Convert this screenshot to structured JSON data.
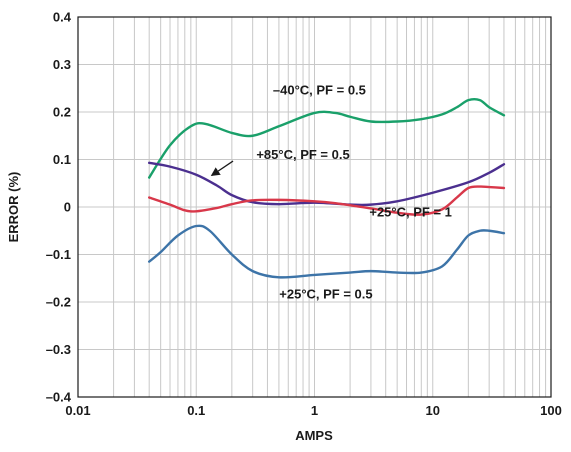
{
  "chart_data": {
    "type": "line",
    "xlabel": "AMPS",
    "ylabel": "ERROR (%)",
    "xscale": "log",
    "xlim": [
      0.01,
      100
    ],
    "ylim": [
      -0.4,
      0.4
    ],
    "grid": true,
    "x_ticks": [
      "0.01",
      "0.1",
      "1",
      "10",
      "100"
    ],
    "y_ticks": [
      "0.4",
      "0.3",
      "0.2",
      "0.1",
      "0",
      "–0.1",
      "–0.2",
      "–0.3",
      "–0.4"
    ],
    "colors": {
      "green": "#1aa06a",
      "purple": "#4b2f8f",
      "red": "#d8384a",
      "blue": "#3d74a8",
      "grid": "#c8c8c8",
      "axis": "#1a1a1a"
    },
    "series": [
      {
        "name": "–40°C, PF = 0.5",
        "color": "#1aa06a",
        "x": [
          0.04,
          0.06,
          0.09,
          0.12,
          0.2,
          0.3,
          0.5,
          1,
          1.5,
          2,
          3,
          5,
          8,
          12,
          16,
          20,
          25,
          30,
          40
        ],
        "y": [
          0.062,
          0.13,
          0.17,
          0.175,
          0.156,
          0.15,
          0.17,
          0.198,
          0.198,
          0.19,
          0.18,
          0.18,
          0.185,
          0.195,
          0.21,
          0.225,
          0.225,
          0.21,
          0.193
        ]
      },
      {
        "name": "+85°C, PF = 0.5",
        "color": "#4b2f8f",
        "x": [
          0.04,
          0.06,
          0.1,
          0.15,
          0.2,
          0.3,
          0.5,
          1,
          2,
          3,
          5,
          10,
          20,
          30,
          40
        ],
        "y": [
          0.093,
          0.085,
          0.068,
          0.045,
          0.025,
          0.01,
          0.006,
          0.009,
          0.005,
          0.005,
          0.012,
          0.03,
          0.052,
          0.072,
          0.09
        ]
      },
      {
        "name": "+25°C, PF = 1",
        "color": "#d8384a",
        "x": [
          0.04,
          0.06,
          0.08,
          0.1,
          0.15,
          0.2,
          0.3,
          0.5,
          1,
          1.5,
          3,
          5,
          8,
          12,
          16,
          20,
          25,
          30,
          40
        ],
        "y": [
          0.02,
          0.005,
          -0.007,
          -0.009,
          -0.002,
          0.006,
          0.014,
          0.015,
          0.012,
          0.008,
          -0.003,
          -0.012,
          -0.016,
          -0.005,
          0.02,
          0.04,
          0.043,
          0.042,
          0.04
        ]
      },
      {
        "name": "+25°C, PF = 0.5",
        "color": "#3d74a8",
        "x": [
          0.04,
          0.05,
          0.07,
          0.1,
          0.13,
          0.2,
          0.3,
          0.5,
          1,
          2,
          3,
          5,
          8,
          12,
          16,
          20,
          25,
          30,
          40
        ],
        "y": [
          -0.115,
          -0.095,
          -0.06,
          -0.04,
          -0.05,
          -0.1,
          -0.135,
          -0.148,
          -0.143,
          -0.138,
          -0.135,
          -0.138,
          -0.138,
          -0.125,
          -0.09,
          -0.06,
          -0.05,
          -0.05,
          -0.055
        ]
      }
    ],
    "annotations": [
      {
        "text": "–40°C, PF = 0.5",
        "x": 1.1,
        "y": 0.237
      },
      {
        "text": "+85°C, PF = 0.5",
        "x": 0.8,
        "y": 0.101,
        "arrow_to": {
          "x": 0.12,
          "y": 0.06
        }
      },
      {
        "text": "+25°C, PF = 1",
        "x": 6.5,
        "y": -0.02
      },
      {
        "text": "+25°C, PF = 0.5",
        "x": 1.25,
        "y": -0.193
      }
    ]
  }
}
